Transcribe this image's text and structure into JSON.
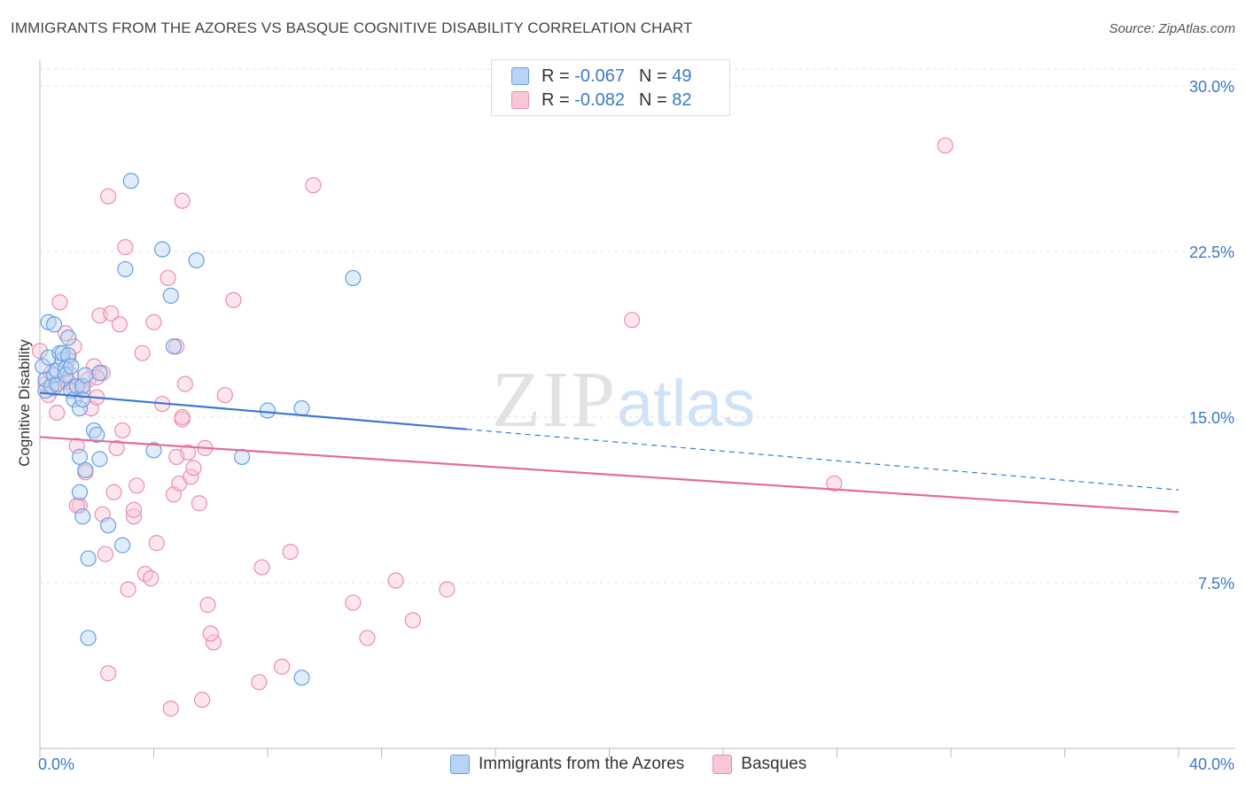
{
  "title": "IMMIGRANTS FROM THE AZORES VS BASQUE COGNITIVE DISABILITY CORRELATION CHART",
  "source": "Source: ZipAtlas.com",
  "watermark": {
    "zip": "ZIP",
    "atlas": "atlas"
  },
  "legend_top": [
    {
      "r_label": "R =",
      "r_value": "-0.067",
      "n_label": "N =",
      "n_value": "49"
    },
    {
      "r_label": "R =",
      "r_value": "-0.082",
      "n_label": "N =",
      "n_value": "82"
    }
  ],
  "legend_bottom": [
    {
      "label": "Immigrants from the Azores"
    },
    {
      "label": "Basques"
    }
  ],
  "chart_data": {
    "type": "scatter",
    "ylabel": "Cognitive Disability",
    "xlabel": "",
    "xlim": [
      0,
      40
    ],
    "ylim": [
      0,
      30
    ],
    "x_tick_labels": [
      "0.0%",
      "40.0%"
    ],
    "y_tick_labels": [
      "7.5%",
      "15.0%",
      "22.5%",
      "30.0%"
    ],
    "y_ticks": [
      7.5,
      15,
      22.5,
      30
    ],
    "grid": true,
    "legend_position": "bottom",
    "colors": {
      "azores_fill": "#b8d4f5",
      "azores_stroke": "#6a9fe0",
      "azores_line": "#3a78d6",
      "basque_fill": "#f9c6d6",
      "basque_stroke": "#ec8fac",
      "basque_line": "#e66a96"
    },
    "series": [
      {
        "name": "Immigrants from the Azores",
        "points": [
          [
            0.1,
            17.3
          ],
          [
            0.2,
            16.2
          ],
          [
            0.2,
            16.7
          ],
          [
            0.3,
            19.3
          ],
          [
            0.3,
            17.7
          ],
          [
            0.4,
            16.4
          ],
          [
            0.5,
            16.9
          ],
          [
            0.5,
            19.2
          ],
          [
            0.6,
            16.5
          ],
          [
            0.6,
            17.1
          ],
          [
            0.7,
            17.9
          ],
          [
            0.8,
            17.6
          ],
          [
            0.8,
            17.9
          ],
          [
            0.9,
            17.2
          ],
          [
            0.9,
            16.9
          ],
          [
            1.0,
            17.8
          ],
          [
            1.0,
            18.6
          ],
          [
            1.1,
            17.3
          ],
          [
            1.1,
            16.2
          ],
          [
            1.2,
            15.8
          ],
          [
            1.3,
            16.4
          ],
          [
            1.4,
            15.4
          ],
          [
            1.5,
            16.4
          ],
          [
            1.5,
            15.8
          ],
          [
            1.6,
            16.9
          ],
          [
            2.1,
            17.0
          ],
          [
            1.9,
            14.4
          ],
          [
            2.0,
            14.2
          ],
          [
            1.4,
            13.2
          ],
          [
            2.1,
            13.1
          ],
          [
            1.6,
            12.6
          ],
          [
            1.4,
            11.6
          ],
          [
            1.5,
            10.5
          ],
          [
            2.4,
            10.1
          ],
          [
            2.9,
            9.2
          ],
          [
            1.7,
            8.6
          ],
          [
            1.7,
            5.0
          ],
          [
            3.2,
            25.7
          ],
          [
            4.3,
            22.6
          ],
          [
            4.6,
            20.5
          ],
          [
            5.5,
            22.1
          ],
          [
            3.0,
            21.7
          ],
          [
            4.7,
            18.2
          ],
          [
            4.0,
            13.5
          ],
          [
            7.1,
            13.2
          ],
          [
            8.0,
            15.3
          ],
          [
            9.2,
            15.4
          ],
          [
            11.0,
            21.3
          ],
          [
            9.2,
            3.2
          ]
        ]
      },
      {
        "name": "Basques",
        "points": [
          [
            0.0,
            18.0
          ],
          [
            0.2,
            16.5
          ],
          [
            0.3,
            16.0
          ],
          [
            0.4,
            17.0
          ],
          [
            0.5,
            16.3
          ],
          [
            0.6,
            15.2
          ],
          [
            0.7,
            20.2
          ],
          [
            0.8,
            16.7
          ],
          [
            0.9,
            18.8
          ],
          [
            1.0,
            17.6
          ],
          [
            1.1,
            16.9
          ],
          [
            1.2,
            18.2
          ],
          [
            1.2,
            16.3
          ],
          [
            1.3,
            13.7
          ],
          [
            1.4,
            11.0
          ],
          [
            1.5,
            16.4
          ],
          [
            1.6,
            12.5
          ],
          [
            1.7,
            16.7
          ],
          [
            1.8,
            15.4
          ],
          [
            1.9,
            17.3
          ],
          [
            2.0,
            15.9
          ],
          [
            2.1,
            19.6
          ],
          [
            2.2,
            17.0
          ],
          [
            2.3,
            8.8
          ],
          [
            2.4,
            25.0
          ],
          [
            2.5,
            19.7
          ],
          [
            2.6,
            11.6
          ],
          [
            2.7,
            13.6
          ],
          [
            2.8,
            19.2
          ],
          [
            2.9,
            14.4
          ],
          [
            3.0,
            22.7
          ],
          [
            3.1,
            7.2
          ],
          [
            3.3,
            10.5
          ],
          [
            3.4,
            11.9
          ],
          [
            3.6,
            17.9
          ],
          [
            3.7,
            7.9
          ],
          [
            3.9,
            7.7
          ],
          [
            4.0,
            19.3
          ],
          [
            4.1,
            9.3
          ],
          [
            4.3,
            15.6
          ],
          [
            4.5,
            21.3
          ],
          [
            4.7,
            11.5
          ],
          [
            4.8,
            18.2
          ],
          [
            4.9,
            12.0
          ],
          [
            5.0,
            14.9
          ],
          [
            5.1,
            16.5
          ],
          [
            5.2,
            13.4
          ],
          [
            5.3,
            12.3
          ],
          [
            5.4,
            12.7
          ],
          [
            5.6,
            11.1
          ],
          [
            5.8,
            13.6
          ],
          [
            5.9,
            6.5
          ],
          [
            6.1,
            4.8
          ],
          [
            6.5,
            16.0
          ],
          [
            6.8,
            20.3
          ],
          [
            7.7,
            3.0
          ],
          [
            7.8,
            8.2
          ],
          [
            8.5,
            3.7
          ],
          [
            8.8,
            8.9
          ],
          [
            9.6,
            25.5
          ],
          [
            11.0,
            6.6
          ],
          [
            11.5,
            5.0
          ],
          [
            12.5,
            7.6
          ],
          [
            13.1,
            5.8
          ],
          [
            14.3,
            7.2
          ],
          [
            20.8,
            19.4
          ],
          [
            31.8,
            27.3
          ],
          [
            27.9,
            12.0
          ],
          [
            5.0,
            24.8
          ],
          [
            4.6,
            1.8
          ],
          [
            5.7,
            2.2
          ],
          [
            2.4,
            3.4
          ],
          [
            5.0,
            15.0
          ],
          [
            1.3,
            11.0
          ],
          [
            2.2,
            10.6
          ],
          [
            1.0,
            16.6
          ],
          [
            1.5,
            16.2
          ],
          [
            2.0,
            16.8
          ],
          [
            3.3,
            10.8
          ],
          [
            4.8,
            13.2
          ],
          [
            6.0,
            5.2
          ],
          [
            0.5,
            16.3
          ]
        ]
      }
    ],
    "trend_lines": [
      {
        "series": "Immigrants from the Azores",
        "x_solid": [
          0,
          15.0
        ],
        "x_dashed": [
          15.0,
          40
        ],
        "y_at_0": 16.1,
        "y_at_40": 11.7
      },
      {
        "series": "Basques",
        "x": [
          0,
          40
        ],
        "y_at_0": 14.1,
        "y_at_40": 10.7
      }
    ]
  }
}
